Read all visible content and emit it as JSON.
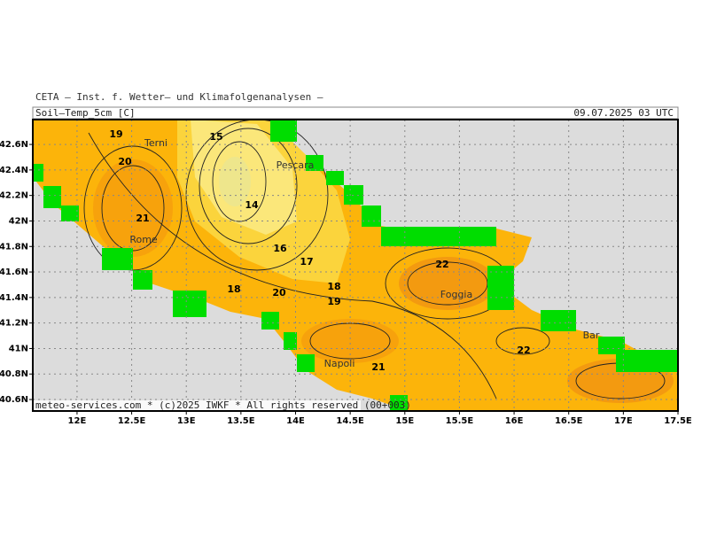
{
  "header": {
    "institute": "CETA — Inst. f. Wetter— und Klimafolgenanalysen —",
    "product": "Soil—Temp_5cm [C]",
    "valid_time": "09.07.2025 03 UTC"
  },
  "footer": "meteo-services.com * (c)2025 IWKF * All rights reserved (00+003)",
  "map": {
    "lon_range": [
      11.595,
      17.5
    ],
    "lat_range": [
      40.51,
      42.795
    ],
    "lon_ticks": [
      {
        "value": 12,
        "label": "12E"
      },
      {
        "value": 12.5,
        "label": "12.5E"
      },
      {
        "value": 13,
        "label": "13E"
      },
      {
        "value": 13.5,
        "label": "13.5E"
      },
      {
        "value": 14,
        "label": "14E"
      },
      {
        "value": 14.5,
        "label": "14.5E"
      },
      {
        "value": 15,
        "label": "15E"
      },
      {
        "value": 15.5,
        "label": "15.5E"
      },
      {
        "value": 16,
        "label": "16E"
      },
      {
        "value": 16.5,
        "label": "16.5E"
      },
      {
        "value": 17,
        "label": "17E"
      },
      {
        "value": 17.5,
        "label": "17.5E"
      }
    ],
    "lat_ticks": [
      {
        "value": 42.6,
        "label": "42.6N"
      },
      {
        "value": 42.4,
        "label": "42.4N"
      },
      {
        "value": 42.2,
        "label": "42.2N"
      },
      {
        "value": 42,
        "label": "42N"
      },
      {
        "value": 41.8,
        "label": "41.8N"
      },
      {
        "value": 41.6,
        "label": "41.6N"
      },
      {
        "value": 41.4,
        "label": "41.4N"
      },
      {
        "value": 41.2,
        "label": "41.2N"
      },
      {
        "value": 41,
        "label": "41N"
      },
      {
        "value": 40.8,
        "label": "40.8N"
      },
      {
        "value": 40.6,
        "label": "40.6N"
      }
    ],
    "contour_labels": [
      19,
      15,
      20,
      21,
      14,
      16,
      17,
      18,
      20,
      18,
      19,
      22,
      21,
      22
    ],
    "cities": [
      "Terni",
      "Pescara",
      "Rome",
      "Foggia",
      "Napoli",
      "Bar"
    ]
  }
}
